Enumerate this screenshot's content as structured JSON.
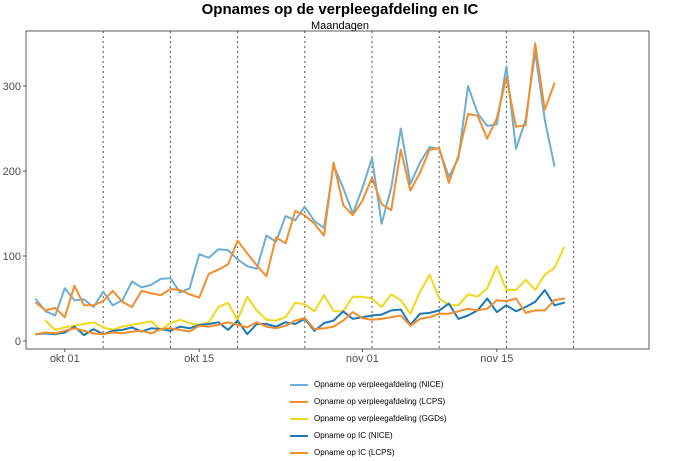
{
  "chart_data": {
    "type": "line",
    "title": "Opnames op de verpleegafdeling en IC",
    "subtitle": "Maandagen",
    "xlabel": "",
    "ylabel": "",
    "x_start": "2020-09-28",
    "x_end": "2020-11-29",
    "ylim": [
      0,
      360
    ],
    "yticks": [
      0,
      100,
      200,
      300
    ],
    "xticks": [
      {
        "day": 3,
        "label": "okt 01"
      },
      {
        "day": 17,
        "label": "okt 15"
      },
      {
        "day": 34,
        "label": "nov 01"
      },
      {
        "day": 48,
        "label": "nov 15"
      }
    ],
    "mondays": [
      7,
      14,
      21,
      28,
      35,
      42,
      49,
      56
    ],
    "series": [
      {
        "name": "Opname op verpleegafdeling (NICE)",
        "color": "#6baed6",
        "start": 0,
        "values": [
          49,
          35,
          30,
          62,
          48,
          49,
          40,
          58,
          42,
          48,
          70,
          63,
          66,
          73,
          74,
          57,
          62,
          102,
          98,
          108,
          107,
          96,
          88,
          85,
          124,
          117,
          147,
          142,
          158,
          141,
          133,
          207,
          180,
          150,
          180,
          215,
          138,
          180,
          250,
          185,
          210,
          228,
          226,
          193,
          215,
          300,
          268,
          253,
          255,
          323,
          226,
          260,
          340,
          260,
          206
        ]
      },
      {
        "name": "Opname op verpleegafdeling (LCPS)",
        "color": "#f28e2b",
        "start": 0,
        "values": [
          45,
          36,
          39,
          28,
          65,
          42,
          42,
          47,
          59,
          46,
          40,
          59,
          56,
          54,
          61,
          60,
          55,
          51,
          79,
          84,
          90,
          118,
          103,
          89,
          76,
          122,
          115,
          153,
          148,
          138,
          124,
          210,
          160,
          148,
          165,
          192,
          161,
          154,
          225,
          177,
          198,
          225,
          227,
          186,
          218,
          267,
          265,
          238,
          262,
          310,
          252,
          254,
          350,
          272,
          303
        ]
      },
      {
        "name": "Opname op verpleegafdeling (GGDs)",
        "color": "#f2d81a",
        "start": 1,
        "values": [
          24,
          13,
          16,
          18,
          20,
          22,
          16,
          13,
          17,
          19,
          21,
          23,
          13,
          21,
          25,
          21,
          19,
          22,
          40,
          45,
          25,
          52,
          36,
          25,
          24,
          28,
          45,
          43,
          35,
          54,
          35,
          35,
          52,
          52,
          50,
          40,
          55,
          48,
          32,
          58,
          78,
          50,
          42,
          42,
          55,
          52,
          62,
          88,
          60,
          60,
          72,
          60,
          78,
          86,
          110
        ]
      },
      {
        "name": "Opname op IC (NICE)",
        "color": "#1f78b4",
        "start": 0,
        "values": [
          8,
          9,
          8,
          10,
          17,
          7,
          14,
          8,
          12,
          13,
          16,
          11,
          15,
          14,
          12,
          17,
          15,
          19,
          20,
          22,
          13,
          24,
          8,
          20,
          20,
          17,
          22,
          20,
          26,
          12,
          21,
          24,
          35,
          26,
          28,
          30,
          31,
          36,
          37,
          19,
          32,
          33,
          36,
          44,
          26,
          30,
          36,
          50,
          34,
          42,
          35,
          40,
          46,
          60,
          42,
          45
        ]
      },
      {
        "name": "Opname op IC (LCPS)",
        "color": "#f28e2b",
        "start": 0,
        "values": [
          8,
          10,
          9,
          12,
          15,
          12,
          9,
          8,
          10,
          9,
          11,
          12,
          9,
          14,
          15,
          13,
          11,
          18,
          17,
          19,
          22,
          19,
          16,
          22,
          17,
          15,
          18,
          24,
          27,
          14,
          15,
          17,
          24,
          34,
          27,
          25,
          26,
          28,
          30,
          18,
          26,
          28,
          32,
          32,
          35,
          38,
          36,
          38,
          48,
          47,
          50,
          33,
          36,
          36,
          48,
          50
        ]
      }
    ]
  }
}
